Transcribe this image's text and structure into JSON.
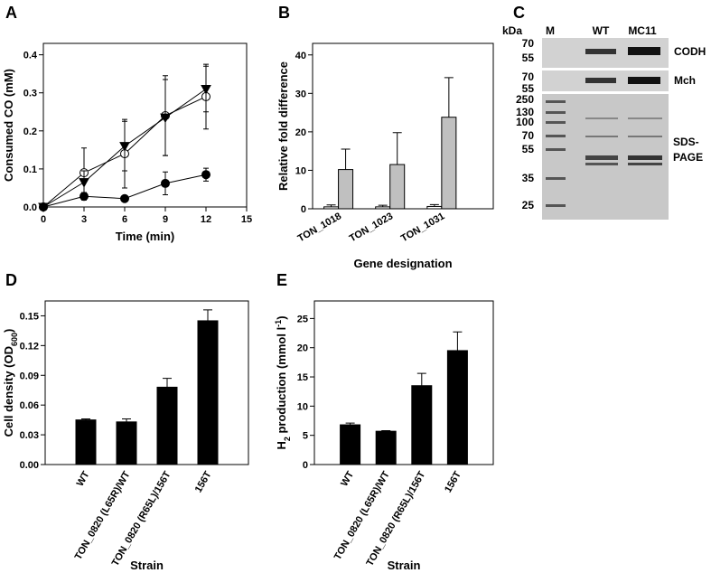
{
  "chart_data": [
    {
      "panel": "A",
      "type": "line",
      "ylabel": "Consumed CO (mM)",
      "xlabel": "Time (min)",
      "x": [
        0,
        3,
        6,
        9,
        12
      ],
      "xlim": [
        0,
        15
      ],
      "xticks": [
        0,
        3,
        6,
        9,
        12,
        15
      ],
      "ylim": [
        0,
        0.43
      ],
      "yticks": [
        {
          "value": 0,
          "label": "0.0"
        },
        0.1,
        0.2,
        0.3,
        0.4
      ],
      "color": "#000000",
      "series": [
        {
          "marker": "circle-open",
          "values": [
            0,
            0.09,
            0.14,
            0.24,
            0.29
          ],
          "errors": [
            0,
            0.065,
            0.09,
            0.105,
            0.085
          ]
        },
        {
          "marker": "triangle-down",
          "values": [
            0,
            0.065,
            0.16,
            0.235,
            0.31
          ],
          "errors": [
            0,
            0.03,
            0.065,
            0.1,
            0.06
          ]
        },
        {
          "marker": "circle",
          "values": [
            0,
            0.028,
            0.022,
            0.062,
            0.085
          ],
          "errors": [
            0,
            0.01,
            0.005,
            0.03,
            0.017
          ]
        }
      ]
    },
    {
      "panel": "B",
      "type": "bar",
      "ylabel": "Relative fold difference",
      "xlabel": "Gene designation",
      "categories": [
        "TON_1018",
        "TON_1023",
        "TON_1031"
      ],
      "ylim": [
        0,
        43
      ],
      "yticks": [
        0,
        10,
        20,
        30,
        40
      ],
      "series": [
        {
          "color": "#ffffff",
          "values": [
            0.5,
            0.5,
            0.6
          ],
          "errors": [
            0.5,
            0.4,
            0.5
          ]
        },
        {
          "color": "#c0c0c0",
          "values": [
            10.2,
            11.5,
            23.8
          ],
          "errors": [
            5.3,
            8.3,
            10.3
          ]
        }
      ]
    },
    {
      "panel": "D",
      "type": "bar",
      "ylabel_parts": [
        {
          "text": "Cell density (OD"
        },
        {
          "text": "600",
          "shift": "sub"
        },
        {
          "text": ")"
        }
      ],
      "xlabel": "Strain",
      "categories": [
        "WT",
        "TON_0820 (L65R)/WT",
        "TON_0820 (R65L)/156T",
        "156T"
      ],
      "ylim": [
        0,
        0.165
      ],
      "yticks": [
        {
          "value": 0,
          "label": "0.00"
        },
        {
          "value": 0.03,
          "label": "0.03"
        },
        {
          "value": 0.06,
          "label": "0.06"
        },
        {
          "value": 0.09,
          "label": "0.09"
        },
        {
          "value": 0.12,
          "label": "0.12"
        },
        {
          "value": 0.15,
          "label": "0.15"
        }
      ],
      "series": [
        {
          "color": "#000000",
          "values": [
            0.045,
            0.043,
            0.078,
            0.145
          ],
          "errors": [
            0.001,
            0.003,
            0.009,
            0.011
          ]
        }
      ]
    },
    {
      "panel": "E",
      "type": "bar",
      "ylabel_parts": [
        {
          "text": "H"
        },
        {
          "text": "2",
          "shift": "sub"
        },
        {
          "text": " production (mmol l"
        },
        {
          "text": "-1",
          "shift": "super"
        },
        {
          "text": ")"
        }
      ],
      "xlabel": "Strain",
      "categories": [
        "WT",
        "TON_0820 (L65R)/WT",
        "TON_0820 (R65L)/156T",
        "156T"
      ],
      "ylim": [
        0,
        28
      ],
      "yticks": [
        0,
        5,
        10,
        15,
        20,
        25
      ],
      "series": [
        {
          "color": "#000000",
          "values": [
            6.8,
            5.7,
            13.5,
            19.5
          ],
          "errors": [
            0.3,
            0.1,
            2.1,
            3.2
          ]
        }
      ]
    }
  ],
  "gel": {
    "panel": "C",
    "unit": "kDa",
    "lanes": [
      "M",
      "WT",
      "MC11"
    ],
    "blots": [
      {
        "markers": [
          "70",
          "55"
        ],
        "label": [
          "CODH"
        ]
      },
      {
        "markers": [
          "70",
          "55"
        ],
        "label": [
          "Mch"
        ]
      },
      {
        "markers": [
          "250",
          "130",
          "100",
          "70",
          "55",
          "35",
          "25"
        ],
        "label": [
          "SDS-",
          "PAGE"
        ]
      }
    ]
  }
}
